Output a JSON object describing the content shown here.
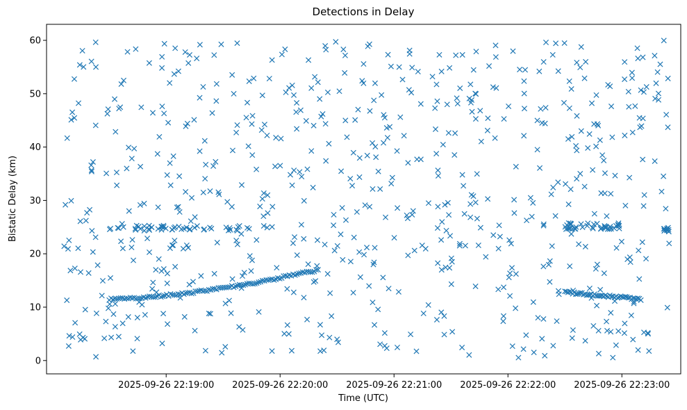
{
  "chart_data": {
    "type": "scatter",
    "title": "Detections in Delay",
    "xlabel": "Time (UTC)",
    "ylabel": "Bistatic Delay (km)",
    "xlim": [
      "2025-09-26 22:17:57",
      "2025-09-26 22:23:31"
    ],
    "ylim": [
      -2.5,
      63
    ],
    "x_tick_labels": [
      "2025-09-26 22:19:00",
      "2025-09-26 22:20:00",
      "2025-09-26 22:21:00",
      "2025-09-26 22:22:00",
      "2025-09-26 22:23:00"
    ],
    "y_tick_labels": [
      "0",
      "10",
      "20",
      "30",
      "40",
      "50",
      "60"
    ],
    "marker": "x",
    "color": "#1f77b4",
    "grid": false,
    "x_time_format": "YYYY-MM-DD HH:MM:SS",
    "x_start": "2025-09-26 22:18:06",
    "x_end": "2025-09-26 22:23:25",
    "note": "Random detections spanning 0–60 km concentrated 22:18:06–22:20:40 and 22:21:10–22:23:25, plus structured tracks: a rising track ~11.5→17 km (22:18:30–22:20:20), a flat track ~25 km (22:18:30–22:19:45), a descending track ~13→11.5 km (22:22:30–22:23:10) and a flat track ~25 km (22:22:30–22:23:00).",
    "series": [
      {
        "values_count": 900
      }
    ]
  }
}
